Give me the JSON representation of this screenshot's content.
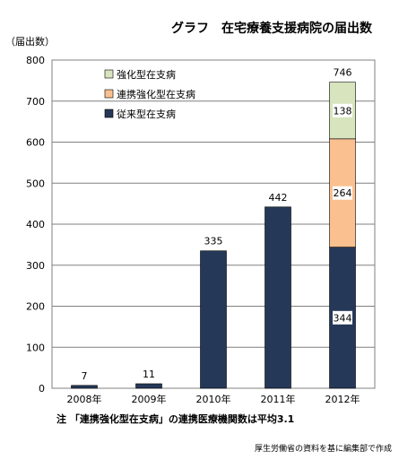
{
  "chart_data": {
    "type": "bar",
    "stacked": true,
    "title": "グラフ　在宅療養支援病院の届出数",
    "ylabel": "（届出数）",
    "xlabel": "",
    "categories": [
      "2008年",
      "2009年",
      "2010年",
      "2011年",
      "2012年"
    ],
    "ylim": [
      0,
      800
    ],
    "yticks": [
      "0",
      "100",
      "200",
      "300",
      "400",
      "500",
      "600",
      "700",
      "800"
    ],
    "series": [
      {
        "name": "従来型在支病",
        "values": [
          7,
          11,
          335,
          442,
          344
        ],
        "color": "#253858"
      },
      {
        "name": "連携強化型在支病",
        "values": [
          0,
          0,
          0,
          0,
          264
        ],
        "color": "#fac090"
      },
      {
        "name": "強化型在支病",
        "values": [
          0,
          0,
          0,
          0,
          138
        ],
        "color": "#d7e4bd"
      }
    ],
    "totals": [
      "7",
      "11",
      "335",
      "442",
      "746"
    ],
    "segment_labels": [
      "344",
      "264",
      "138"
    ],
    "grid": true,
    "legend_position": "top-left"
  },
  "note": "注 「連携強化型在支病」の連携医療機関数は平均3.1",
  "source": "厚生労働省の資料を基に編集部で作成"
}
